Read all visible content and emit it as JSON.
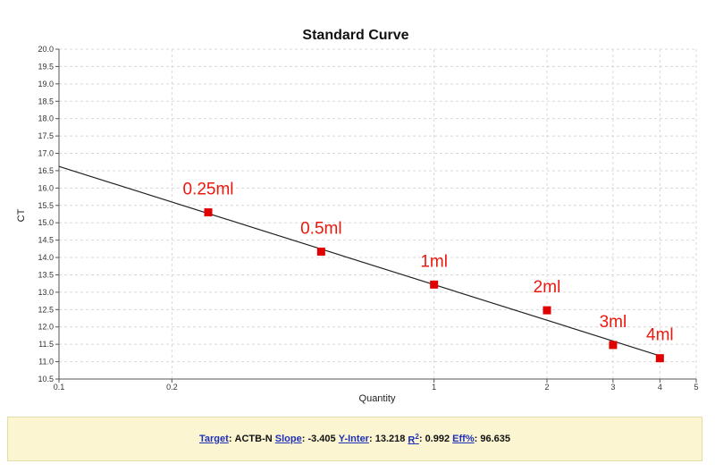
{
  "chart_data": {
    "type": "scatter",
    "title": "Standard Curve",
    "xlabel": "Quantity",
    "ylabel": "CT",
    "xscale": "log",
    "xlim": [
      0.1,
      5
    ],
    "ylim": [
      10.5,
      20.0
    ],
    "yticks": [
      "10.5",
      "11.0",
      "11.5",
      "12.0",
      "12.5",
      "13.0",
      "13.5",
      "14.0",
      "14.5",
      "15.0",
      "15.5",
      "16.0",
      "16.5",
      "17.0",
      "17.5",
      "18.0",
      "18.5",
      "19.0",
      "19.5",
      "20.0"
    ],
    "xticks": [
      {
        "value": 0.1,
        "label": "0.1"
      },
      {
        "value": 0.2,
        "label": "0.2"
      },
      {
        "value": 1,
        "label": "1"
      },
      {
        "value": 2,
        "label": "2"
      },
      {
        "value": 3,
        "label": "3"
      },
      {
        "value": 4,
        "label": "4"
      },
      {
        "value": 5,
        "label": "5"
      }
    ],
    "grid": true,
    "points": [
      {
        "x": 0.25,
        "y": 15.3,
        "label": "0.25ml"
      },
      {
        "x": 0.5,
        "y": 14.17,
        "label": "0.5ml"
      },
      {
        "x": 1,
        "y": 13.22,
        "label": "1ml"
      },
      {
        "x": 2,
        "y": 12.48,
        "label": "2ml"
      },
      {
        "x": 3,
        "y": 11.48,
        "label": "3ml"
      },
      {
        "x": 4,
        "y": 11.1,
        "label": "4ml"
      }
    ],
    "fit_line": {
      "slope": -3.405,
      "intercept": 13.218
    },
    "colors": {
      "points": "#e00000",
      "line": "#222222",
      "grid": "#d8d8d8",
      "annotation": "#e8190f"
    }
  },
  "footer": {
    "target_label": "Target",
    "target_value": "ACTB-N",
    "slope_label": "Slope",
    "slope_value": "-3.405",
    "yinter_label": "Y-Inter",
    "yinter_value": "13.218",
    "r2_label": "R",
    "r2_sup": "2",
    "r2_value": "0.992",
    "eff_label": "Eff%",
    "eff_value": "96.635"
  }
}
